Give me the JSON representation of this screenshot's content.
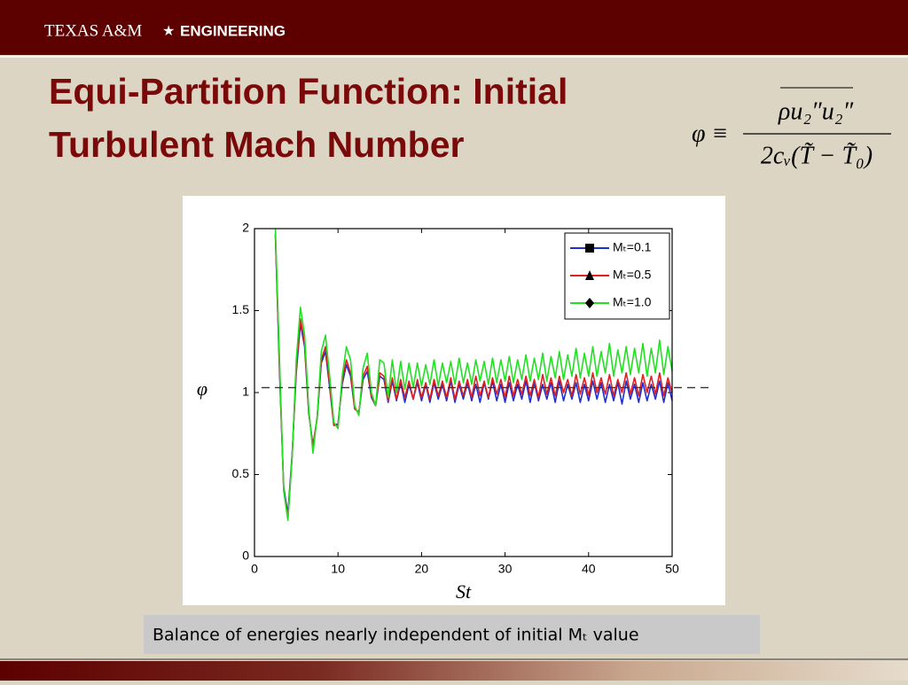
{
  "header": {
    "brand": "TEXAS A&M",
    "brand_bold": "ENGINEERING"
  },
  "title_lines": [
    "Equi-Partition Function: Initial",
    "Turbulent Mach Number"
  ],
  "formula": {
    "lhs": "φ ≡",
    "numerator": "ρu₂″u₂″",
    "denominator": "2cᵥ(T̃ − T̃₀)"
  },
  "caption": "Balance of energies nearly independent of initial Mₜ value",
  "chart_data": {
    "type": "line",
    "x_label": "St",
    "y_label": "φ",
    "xlim": [
      0,
      50
    ],
    "ylim": [
      0,
      2
    ],
    "xticks": [
      0,
      10,
      20,
      30,
      40,
      50
    ],
    "yticks": [
      0,
      0.5,
      1,
      1.5,
      2
    ],
    "hline": 1.03,
    "legend": "upper right",
    "x": [
      2.5,
      3,
      3.5,
      4,
      4.5,
      5,
      5.5,
      6,
      6.5,
      7,
      7.5,
      8,
      8.5,
      9,
      9.5,
      10,
      10.5,
      11,
      11.5,
      12,
      12.5,
      13,
      13.5,
      14,
      14.5,
      15,
      15.5,
      16,
      16.5,
      17,
      17.5,
      18,
      18.5,
      19,
      19.5,
      20,
      20.5,
      21,
      21.5,
      22,
      22.5,
      23,
      23.5,
      24,
      24.5,
      25,
      25.5,
      26,
      26.5,
      27,
      27.5,
      28,
      28.5,
      29,
      29.5,
      30,
      30.5,
      31,
      31.5,
      32,
      32.5,
      33,
      33.5,
      34,
      34.5,
      35,
      35.5,
      36,
      36.5,
      37,
      37.5,
      38,
      38.5,
      39,
      39.5,
      40,
      40.5,
      41,
      41.5,
      42,
      42.5,
      43,
      43.5,
      44,
      44.5,
      45,
      45.5,
      46,
      46.5,
      47,
      47.5,
      48,
      48.5,
      49,
      49.5,
      50
    ],
    "series": [
      {
        "name": "Mₜ=0.1",
        "color": "#1f2fd0",
        "marker": "square",
        "values": [
          1.96,
          1.12,
          0.42,
          0.26,
          0.62,
          1.12,
          1.42,
          1.28,
          0.87,
          0.68,
          0.84,
          1.18,
          1.25,
          1.03,
          0.8,
          0.81,
          1.05,
          1.17,
          1.1,
          0.9,
          0.88,
          1.08,
          1.13,
          0.97,
          0.92,
          1.1,
          1.08,
          0.94,
          1.07,
          0.95,
          1.06,
          0.94,
          1.05,
          0.96,
          1.06,
          0.95,
          1.05,
          0.94,
          1.06,
          0.96,
          1.05,
          0.95,
          1.07,
          0.94,
          1.05,
          0.96,
          1.06,
          0.95,
          1.05,
          0.94,
          1.06,
          0.96,
          1.07,
          0.95,
          1.05,
          0.94,
          1.06,
          0.95,
          1.05,
          0.96,
          1.07,
          0.94,
          1.06,
          0.95,
          1.05,
          0.96,
          1.06,
          0.94,
          1.07,
          0.95,
          1.05,
          0.96,
          1.06,
          0.94,
          1.05,
          0.95,
          1.07,
          0.96,
          1.06,
          0.94,
          1.05,
          0.95,
          1.06,
          0.93,
          1.07,
          0.96,
          1.05,
          0.94,
          1.06,
          0.95,
          1.05,
          0.96,
          1.07,
          0.94,
          1.06,
          0.95
        ]
      },
      {
        "name": "Mₜ=0.5",
        "color": "#e02020",
        "marker": "triangle",
        "values": [
          1.97,
          1.15,
          0.4,
          0.24,
          0.6,
          1.15,
          1.45,
          1.3,
          0.88,
          0.67,
          0.85,
          1.2,
          1.28,
          1.05,
          0.8,
          0.8,
          1.07,
          1.2,
          1.12,
          0.9,
          0.88,
          1.1,
          1.16,
          0.98,
          0.92,
          1.12,
          1.1,
          0.95,
          1.09,
          0.96,
          1.08,
          0.97,
          1.07,
          0.96,
          1.08,
          0.97,
          1.06,
          0.96,
          1.08,
          0.98,
          1.07,
          0.97,
          1.09,
          0.96,
          1.07,
          0.98,
          1.08,
          0.97,
          1.1,
          0.98,
          1.07,
          0.97,
          1.09,
          0.99,
          1.08,
          0.97,
          1.1,
          0.98,
          1.08,
          0.99,
          1.1,
          0.98,
          1.08,
          0.97,
          1.11,
          0.99,
          1.09,
          0.98,
          1.1,
          1.0,
          1.08,
          0.98,
          1.11,
          0.99,
          1.09,
          0.98,
          1.12,
          1.0,
          1.09,
          0.99,
          1.11,
          0.98,
          1.08,
          1.0,
          1.12,
          0.99,
          1.09,
          0.98,
          1.11,
          1.0,
          1.1,
          0.99,
          1.12,
          0.98,
          1.09,
          1.0
        ]
      },
      {
        "name": "Mₜ=1.0",
        "color": "#22e022",
        "marker": "diamond",
        "values": [
          2.0,
          1.2,
          0.4,
          0.22,
          0.6,
          1.2,
          1.52,
          1.35,
          0.9,
          0.63,
          0.85,
          1.25,
          1.35,
          1.1,
          0.82,
          0.78,
          1.1,
          1.28,
          1.2,
          0.92,
          0.86,
          1.15,
          1.24,
          1.0,
          0.92,
          1.2,
          1.18,
          0.97,
          1.2,
          1.0,
          1.19,
          1.02,
          1.18,
          1.03,
          1.18,
          1.04,
          1.17,
          1.05,
          1.2,
          1.04,
          1.18,
          1.06,
          1.19,
          1.05,
          1.21,
          1.06,
          1.18,
          1.05,
          1.2,
          1.07,
          1.19,
          1.05,
          1.21,
          1.06,
          1.2,
          1.07,
          1.22,
          1.06,
          1.2,
          1.08,
          1.23,
          1.07,
          1.21,
          1.08,
          1.24,
          1.07,
          1.22,
          1.09,
          1.25,
          1.08,
          1.23,
          1.1,
          1.27,
          1.09,
          1.24,
          1.1,
          1.28,
          1.1,
          1.25,
          1.12,
          1.3,
          1.1,
          1.26,
          1.12,
          1.28,
          1.11,
          1.27,
          1.12,
          1.3,
          1.1,
          1.27,
          1.12,
          1.32,
          1.11,
          1.28,
          1.13
        ]
      }
    ]
  }
}
